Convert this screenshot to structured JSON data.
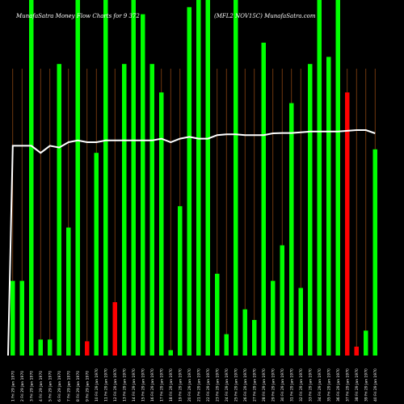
{
  "header": {
    "left_title": "MunafaSatra  Money  Flow  Charts for 9 372",
    "right_title": "(MFL2 NOV15C) MunafaSatra.com"
  },
  "colors": {
    "background": "#000000",
    "up_bar": "#00ff00",
    "down_bar": "#ff0000",
    "grid_line": "#8b4513",
    "price_line": "#ffffff"
  },
  "chart_data": {
    "type": "bar",
    "title": "MunafaSatra  Money  Flow  Charts for 9 372",
    "subtitle": "(MFL2 NOV15C) MunafaSatra.com",
    "ylim": [
      0,
      100
    ],
    "categories": [
      "1 Fri 29 Jan 1970",
      "2 Fri 29 Jan 1970",
      "3 Fri 29 Jan 1970",
      "4 Fri 29 Jan 1970",
      "5 Fri 29 Jan 1970",
      "6 Fri 29 Jan 1970",
      "7 Fri 29 Jan 1970",
      "8 Fri 29 Jan 1970",
      "9 Fri 29 Jan 1970",
      "10 Fri 29 Jan 1970",
      "11 Fri 29 Jan 1970",
      "12 Fri 29 Jan 1970",
      "13 Fri 29 Jan 1970",
      "14 Fri 29 Jan 1970",
      "15 Fri 29 Jan 1970",
      "16 Fri 29 Jan 1970",
      "17 Fri 29 Jan 1970",
      "18 Fri 29 Jan 1970",
      "19 Fri 29 Jan 1970",
      "20 Fri 29 Jan 1970",
      "21 Fri 29 Jan 1970",
      "22 Fri 29 Jan 1970",
      "23 Fri 29 Jan 1970",
      "24 Fri 29 Jan 1970",
      "25 Fri 29 Jan 1970",
      "26 Fri 29 Jan 1970",
      "27 Fri 29 Jan 1970",
      "28 Fri 29 Jan 1970",
      "29 Fri 29 Jan 1970",
      "30 Fri 29 Jan 1970",
      "31 Fri 29 Jan 1970",
      "32 Fri 29 Jan 1970",
      "33 Fri 29 Jan 1970",
      "34 Fri 29 Jan 1970",
      "35 Fri 29 Jan 1970",
      "36 Fri 29 Jan 1970",
      "37 Fri 29 Jan 1970",
      "38 Fri 29 Jan 1970",
      "39 Fri 29 Jan 1970",
      "40 Fri 29 Jan 1970"
    ],
    "values": [
      21,
      21,
      100,
      4.5,
      4.5,
      82,
      36,
      100,
      4,
      57,
      100,
      15,
      82,
      100,
      96,
      82,
      74,
      1.5,
      42,
      98,
      100,
      100,
      23,
      6,
      100,
      13,
      10,
      88,
      21,
      31,
      71,
      19,
      82,
      100,
      84,
      100,
      74,
      2.5,
      7,
      58
    ],
    "directions": [
      "up",
      "up",
      "up",
      "up",
      "up",
      "up",
      "up",
      "up",
      "down",
      "up",
      "up",
      "down",
      "up",
      "up",
      "up",
      "up",
      "up",
      "up",
      "up",
      "up",
      "up",
      "up",
      "up",
      "up",
      "up",
      "up",
      "up",
      "up",
      "up",
      "up",
      "up",
      "up",
      "up",
      "up",
      "up",
      "up",
      "down",
      "down",
      "up",
      "up"
    ],
    "price_line": [
      59,
      59,
      59,
      57,
      59,
      58.5,
      60,
      60.5,
      60,
      60,
      60.5,
      60.5,
      60.5,
      60.5,
      60.5,
      60.5,
      61,
      60,
      61,
      61.5,
      61,
      61,
      62,
      62.2,
      62.2,
      62,
      62,
      62,
      62.5,
      62.6,
      62.6,
      62.8,
      63,
      63,
      63,
      63,
      63.2,
      63.4,
      63.4,
      62.5
    ],
    "price_line_start": 0
  }
}
